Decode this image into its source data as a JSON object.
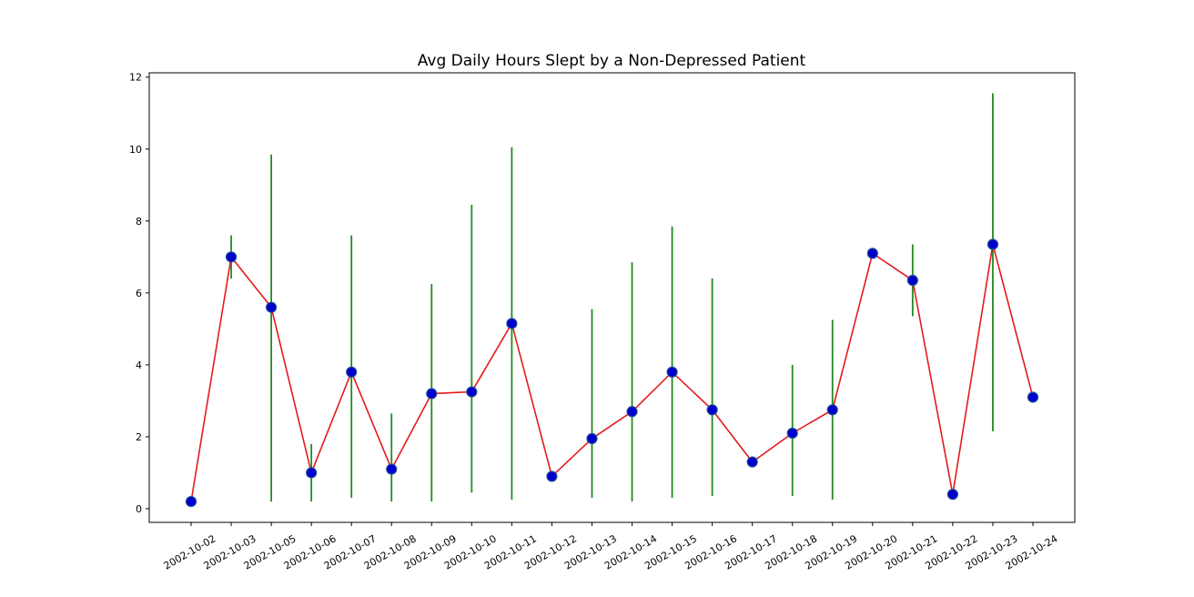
{
  "chart_data": {
    "type": "line",
    "title": "Avg Daily Hours Slept by a Non-Depressed Patient",
    "xlabel": "",
    "ylabel": "",
    "ylim": [
      -0.38,
      12.12
    ],
    "yticks": [
      0,
      2,
      4,
      6,
      8,
      10,
      12
    ],
    "categories": [
      "2002-10-02",
      "2002-10-03",
      "2002-10-05",
      "2002-10-06",
      "2002-10-07",
      "2002-10-08",
      "2002-10-09",
      "2002-10-10",
      "2002-10-11",
      "2002-10-12",
      "2002-10-13",
      "2002-10-14",
      "2002-10-15",
      "2002-10-16",
      "2002-10-17",
      "2002-10-18",
      "2002-10-19",
      "2002-10-20",
      "2002-10-21",
      "2002-10-22",
      "2002-10-23",
      "2002-10-24"
    ],
    "values": [
      0.2,
      7.0,
      5.6,
      1.0,
      3.8,
      1.1,
      3.2,
      3.25,
      5.15,
      0.9,
      1.95,
      2.7,
      3.8,
      2.75,
      1.3,
      2.1,
      2.75,
      7.1,
      6.35,
      0.4,
      7.35,
      3.1
    ],
    "error_low": [
      null,
      6.4,
      0.2,
      0.2,
      0.3,
      0.2,
      0.2,
      0.45,
      0.25,
      null,
      0.3,
      0.2,
      0.3,
      0.35,
      null,
      0.35,
      0.25,
      null,
      5.35,
      null,
      2.15,
      null
    ],
    "error_high": [
      null,
      7.6,
      9.85,
      1.8,
      7.6,
      2.65,
      6.25,
      8.45,
      10.05,
      null,
      5.55,
      6.85,
      7.85,
      6.4,
      null,
      4.0,
      5.25,
      null,
      7.35,
      null,
      11.55,
      null
    ],
    "colors": {
      "line": "#e41a1c",
      "marker_fill": "#0000cc",
      "marker_edge": "#1f4e9c",
      "error": "#228b22",
      "axis": "#000000"
    },
    "grid": false,
    "legend": "none"
  }
}
